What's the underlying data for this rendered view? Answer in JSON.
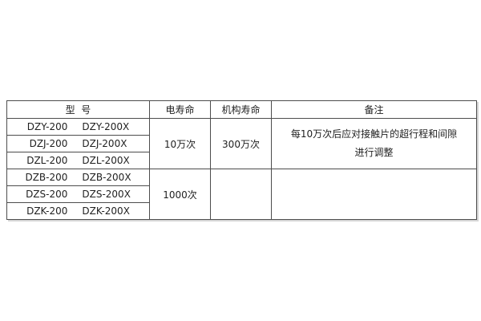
{
  "page": {
    "background_color": "#ffffff",
    "border_color": "#4d4d4d",
    "text_color": "#1f1f1f"
  },
  "table": {
    "headers": {
      "model": "型  号",
      "electrical_life": "电寿命",
      "mechanical_life": "机构寿命",
      "remarks": "备注"
    },
    "groups": [
      {
        "rows": [
          {
            "a": "DZY-200",
            "b": "DZY-200X"
          },
          {
            "a": "DZJ-200",
            "b": "DZJ-200X"
          },
          {
            "a": "DZL-200",
            "b": "DZL-200X"
          }
        ],
        "electrical_life": "10万次",
        "mechanical_life": "300万次",
        "remarks": [
          "每10万次后应对接触片的超行程和间隙",
          "进行调整"
        ]
      },
      {
        "rows": [
          {
            "a": "DZB-200",
            "b": "DZB-200X"
          },
          {
            "a": "DZS-200",
            "b": "DZS-200X"
          },
          {
            "a": "DZK-200",
            "b": "DZK-200X"
          }
        ],
        "electrical_life": "1000次",
        "mechanical_life": "",
        "remarks": []
      }
    ]
  }
}
